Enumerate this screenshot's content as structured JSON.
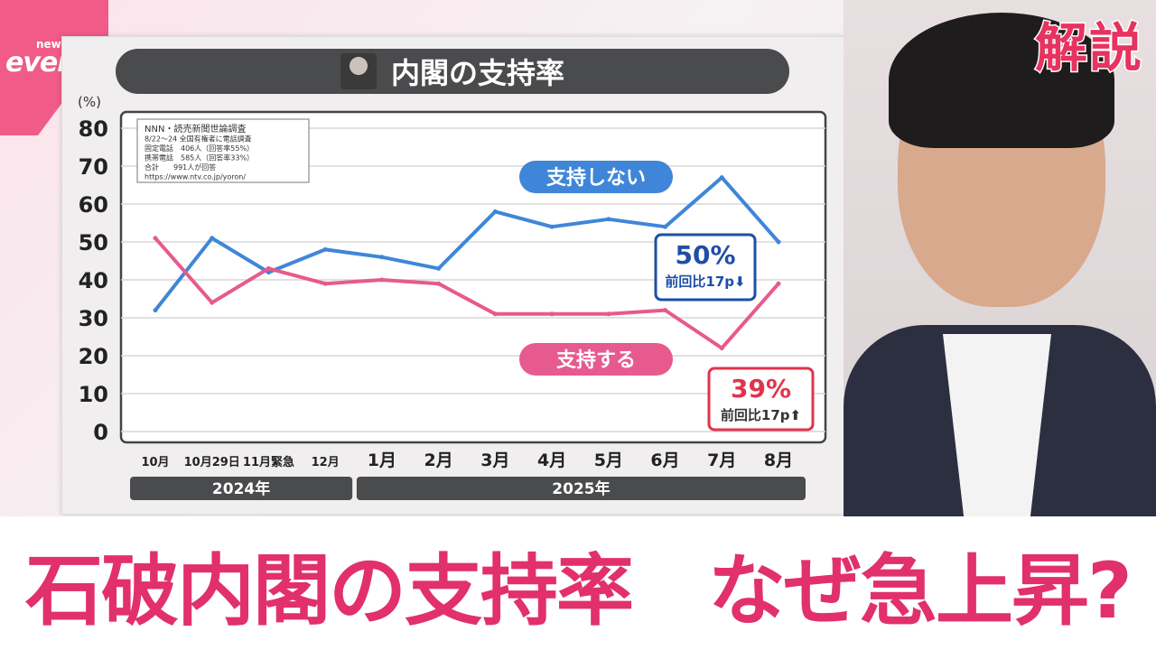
{
  "broadcast": {
    "logo_news": "news",
    "logo_every": "every.",
    "corner_tag": "解説",
    "caption": "石破内閣の支持率　なぜ急上昇?"
  },
  "colors": {
    "support": "#e75a8d",
    "oppose": "#3f86d8",
    "caption": "#e1306c"
  },
  "chart_data": {
    "type": "line",
    "title": "内閣の支持率",
    "ylabel": "(%)",
    "ylim": [
      0,
      80
    ],
    "yticks": [
      0,
      10,
      20,
      30,
      40,
      50,
      60,
      70,
      80
    ],
    "categories": [
      "10月",
      "10月29日",
      "11月緊急",
      "12月",
      "1月",
      "2月",
      "3月",
      "4月",
      "5月",
      "6月",
      "7月",
      "8月"
    ],
    "year_groups": [
      {
        "label": "2024年",
        "from": 0,
        "to": 3
      },
      {
        "label": "2025年",
        "from": 4,
        "to": 11
      }
    ],
    "series": [
      {
        "name": "支持しない",
        "color": "#3f86d8",
        "values": [
          32,
          51,
          42,
          48,
          46,
          43,
          58,
          54,
          56,
          54,
          67,
          50
        ]
      },
      {
        "name": "支持する",
        "color": "#e75a8d",
        "values": [
          51,
          34,
          43,
          39,
          40,
          39,
          31,
          31,
          31,
          32,
          22,
          39
        ]
      }
    ],
    "callouts": [
      {
        "value": "50%",
        "sub": "前回比17p⬇"
      },
      {
        "value": "39%",
        "sub": "前回比17p⬆"
      }
    ],
    "source_box": [
      "NNN・読売新聞世論調査",
      "8/22～24 全国有権者に電話調査",
      "固定電話　406人（回答率55%）",
      "携帯電話　585人（回答率33%）",
      "合計　　991人が回答",
      "https://www.ntv.co.jp/yoron/"
    ],
    "grid": true
  }
}
